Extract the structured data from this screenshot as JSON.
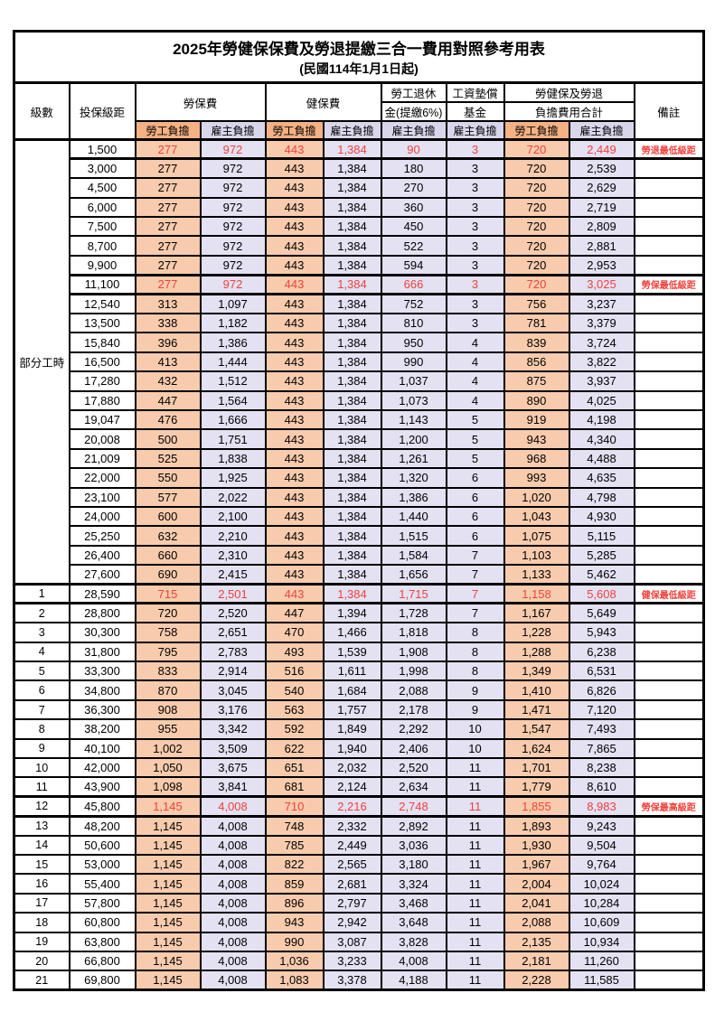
{
  "table": {
    "title": "2025年勞健保保費及勞退提繳三合一費用對照參考用表",
    "subtitle": "(民國114年1月1日起)",
    "headers": {
      "level": "級數",
      "salary_bracket": "投保級距",
      "labor_insurance": "勞保費",
      "health_insurance": "健保費",
      "pension_line1": "勞工退休",
      "pension_line2": "金(提繳6%)",
      "wage_fund_line1": "工資墊償",
      "wage_fund_line2": "基金",
      "total_line1": "勞健保及勞退",
      "total_line2": "負擔費用合計",
      "remark": "備註",
      "employee_share": "勞工負擔",
      "employer_share": "雇主負擔"
    },
    "part_time_label": "部分工時",
    "part_time_rowspan": 23,
    "colors": {
      "employee_header_bg": "#f4b183",
      "employee_cell_bg": "#f8cbad",
      "employer_header_bg": "#d9d6ec",
      "employer_cell_bg": "#e3e1f2",
      "highlight_text": "#f2413b",
      "remark_text": "#fa4b42",
      "border": "#000000"
    },
    "rows": [
      {
        "level": "",
        "salary": "1,500",
        "labor_emp": "277",
        "labor_er": "972",
        "health_emp": "443",
        "health_er": "1,384",
        "pension_er": "90",
        "fund_er": "3",
        "total_emp": "720",
        "total_er": "2,449",
        "remark": "勞退最低級距",
        "highlight": true
      },
      {
        "level": "",
        "salary": "3,000",
        "labor_emp": "277",
        "labor_er": "972",
        "health_emp": "443",
        "health_er": "1,384",
        "pension_er": "180",
        "fund_er": "3",
        "total_emp": "720",
        "total_er": "2,539",
        "remark": "",
        "highlight": false
      },
      {
        "level": "",
        "salary": "4,500",
        "labor_emp": "277",
        "labor_er": "972",
        "health_emp": "443",
        "health_er": "1,384",
        "pension_er": "270",
        "fund_er": "3",
        "total_emp": "720",
        "total_er": "2,629",
        "remark": "",
        "highlight": false
      },
      {
        "level": "",
        "salary": "6,000",
        "labor_emp": "277",
        "labor_er": "972",
        "health_emp": "443",
        "health_er": "1,384",
        "pension_er": "360",
        "fund_er": "3",
        "total_emp": "720",
        "total_er": "2,719",
        "remark": "",
        "highlight": false
      },
      {
        "level": "",
        "salary": "7,500",
        "labor_emp": "277",
        "labor_er": "972",
        "health_emp": "443",
        "health_er": "1,384",
        "pension_er": "450",
        "fund_er": "3",
        "total_emp": "720",
        "total_er": "2,809",
        "remark": "",
        "highlight": false
      },
      {
        "level": "",
        "salary": "8,700",
        "labor_emp": "277",
        "labor_er": "972",
        "health_emp": "443",
        "health_er": "1,384",
        "pension_er": "522",
        "fund_er": "3",
        "total_emp": "720",
        "total_er": "2,881",
        "remark": "",
        "highlight": false
      },
      {
        "level": "",
        "salary": "9,900",
        "labor_emp": "277",
        "labor_er": "972",
        "health_emp": "443",
        "health_er": "1,384",
        "pension_er": "594",
        "fund_er": "3",
        "total_emp": "720",
        "total_er": "2,953",
        "remark": "",
        "highlight": false
      },
      {
        "level": "",
        "salary": "11,100",
        "labor_emp": "277",
        "labor_er": "972",
        "health_emp": "443",
        "health_er": "1,384",
        "pension_er": "666",
        "fund_er": "3",
        "total_emp": "720",
        "total_er": "3,025",
        "remark": "勞保最低級距",
        "highlight": true
      },
      {
        "level": "",
        "salary": "12,540",
        "labor_emp": "313",
        "labor_er": "1,097",
        "health_emp": "443",
        "health_er": "1,384",
        "pension_er": "752",
        "fund_er": "3",
        "total_emp": "756",
        "total_er": "3,237",
        "remark": "",
        "highlight": false
      },
      {
        "level": "",
        "salary": "13,500",
        "labor_emp": "338",
        "labor_er": "1,182",
        "health_emp": "443",
        "health_er": "1,384",
        "pension_er": "810",
        "fund_er": "3",
        "total_emp": "781",
        "total_er": "3,379",
        "remark": "",
        "highlight": false
      },
      {
        "level": "",
        "salary": "15,840",
        "labor_emp": "396",
        "labor_er": "1,386",
        "health_emp": "443",
        "health_er": "1,384",
        "pension_er": "950",
        "fund_er": "4",
        "total_emp": "839",
        "total_er": "3,724",
        "remark": "",
        "highlight": false
      },
      {
        "level": "",
        "salary": "16,500",
        "labor_emp": "413",
        "labor_er": "1,444",
        "health_emp": "443",
        "health_er": "1,384",
        "pension_er": "990",
        "fund_er": "4",
        "total_emp": "856",
        "total_er": "3,822",
        "remark": "",
        "highlight": false
      },
      {
        "level": "",
        "salary": "17,280",
        "labor_emp": "432",
        "labor_er": "1,512",
        "health_emp": "443",
        "health_er": "1,384",
        "pension_er": "1,037",
        "fund_er": "4",
        "total_emp": "875",
        "total_er": "3,937",
        "remark": "",
        "highlight": false
      },
      {
        "level": "",
        "salary": "17,880",
        "labor_emp": "447",
        "labor_er": "1,564",
        "health_emp": "443",
        "health_er": "1,384",
        "pension_er": "1,073",
        "fund_er": "4",
        "total_emp": "890",
        "total_er": "4,025",
        "remark": "",
        "highlight": false
      },
      {
        "level": "",
        "salary": "19,047",
        "labor_emp": "476",
        "labor_er": "1,666",
        "health_emp": "443",
        "health_er": "1,384",
        "pension_er": "1,143",
        "fund_er": "5",
        "total_emp": "919",
        "total_er": "4,198",
        "remark": "",
        "highlight": false
      },
      {
        "level": "",
        "salary": "20,008",
        "labor_emp": "500",
        "labor_er": "1,751",
        "health_emp": "443",
        "health_er": "1,384",
        "pension_er": "1,200",
        "fund_er": "5",
        "total_emp": "943",
        "total_er": "4,340",
        "remark": "",
        "highlight": false
      },
      {
        "level": "",
        "salary": "21,009",
        "labor_emp": "525",
        "labor_er": "1,838",
        "health_emp": "443",
        "health_er": "1,384",
        "pension_er": "1,261",
        "fund_er": "5",
        "total_emp": "968",
        "total_er": "4,488",
        "remark": "",
        "highlight": false
      },
      {
        "level": "",
        "salary": "22,000",
        "labor_emp": "550",
        "labor_er": "1,925",
        "health_emp": "443",
        "health_er": "1,384",
        "pension_er": "1,320",
        "fund_er": "6",
        "total_emp": "993",
        "total_er": "4,635",
        "remark": "",
        "highlight": false
      },
      {
        "level": "",
        "salary": "23,100",
        "labor_emp": "577",
        "labor_er": "2,022",
        "health_emp": "443",
        "health_er": "1,384",
        "pension_er": "1,386",
        "fund_er": "6",
        "total_emp": "1,020",
        "total_er": "4,798",
        "remark": "",
        "highlight": false
      },
      {
        "level": "",
        "salary": "24,000",
        "labor_emp": "600",
        "labor_er": "2,100",
        "health_emp": "443",
        "health_er": "1,384",
        "pension_er": "1,440",
        "fund_er": "6",
        "total_emp": "1,043",
        "total_er": "4,930",
        "remark": "",
        "highlight": false
      },
      {
        "level": "",
        "salary": "25,250",
        "labor_emp": "632",
        "labor_er": "2,210",
        "health_emp": "443",
        "health_er": "1,384",
        "pension_er": "1,515",
        "fund_er": "6",
        "total_emp": "1,075",
        "total_er": "5,115",
        "remark": "",
        "highlight": false
      },
      {
        "level": "",
        "salary": "26,400",
        "labor_emp": "660",
        "labor_er": "2,310",
        "health_emp": "443",
        "health_er": "1,384",
        "pension_er": "1,584",
        "fund_er": "7",
        "total_emp": "1,103",
        "total_er": "5,285",
        "remark": "",
        "highlight": false
      },
      {
        "level": "",
        "salary": "27,600",
        "labor_emp": "690",
        "labor_er": "2,415",
        "health_emp": "443",
        "health_er": "1,384",
        "pension_er": "1,656",
        "fund_er": "7",
        "total_emp": "1,133",
        "total_er": "5,462",
        "remark": "",
        "highlight": false
      },
      {
        "level": "1",
        "salary": "28,590",
        "labor_emp": "715",
        "labor_er": "2,501",
        "health_emp": "443",
        "health_er": "1,384",
        "pension_er": "1,715",
        "fund_er": "7",
        "total_emp": "1,158",
        "total_er": "5,608",
        "remark": "健保最低級距",
        "highlight": true
      },
      {
        "level": "2",
        "salary": "28,800",
        "labor_emp": "720",
        "labor_er": "2,520",
        "health_emp": "447",
        "health_er": "1,394",
        "pension_er": "1,728",
        "fund_er": "7",
        "total_emp": "1,167",
        "total_er": "5,649",
        "remark": "",
        "highlight": false
      },
      {
        "level": "3",
        "salary": "30,300",
        "labor_emp": "758",
        "labor_er": "2,651",
        "health_emp": "470",
        "health_er": "1,466",
        "pension_er": "1,818",
        "fund_er": "8",
        "total_emp": "1,228",
        "total_er": "5,943",
        "remark": "",
        "highlight": false
      },
      {
        "level": "4",
        "salary": "31,800",
        "labor_emp": "795",
        "labor_er": "2,783",
        "health_emp": "493",
        "health_er": "1,539",
        "pension_er": "1,908",
        "fund_er": "8",
        "total_emp": "1,288",
        "total_er": "6,238",
        "remark": "",
        "highlight": false
      },
      {
        "level": "5",
        "salary": "33,300",
        "labor_emp": "833",
        "labor_er": "2,914",
        "health_emp": "516",
        "health_er": "1,611",
        "pension_er": "1,998",
        "fund_er": "8",
        "total_emp": "1,349",
        "total_er": "6,531",
        "remark": "",
        "highlight": false
      },
      {
        "level": "6",
        "salary": "34,800",
        "labor_emp": "870",
        "labor_er": "3,045",
        "health_emp": "540",
        "health_er": "1,684",
        "pension_er": "2,088",
        "fund_er": "9",
        "total_emp": "1,410",
        "total_er": "6,826",
        "remark": "",
        "highlight": false
      },
      {
        "level": "7",
        "salary": "36,300",
        "labor_emp": "908",
        "labor_er": "3,176",
        "health_emp": "563",
        "health_er": "1,757",
        "pension_er": "2,178",
        "fund_er": "9",
        "total_emp": "1,471",
        "total_er": "7,120",
        "remark": "",
        "highlight": false
      },
      {
        "level": "8",
        "salary": "38,200",
        "labor_emp": "955",
        "labor_er": "3,342",
        "health_emp": "592",
        "health_er": "1,849",
        "pension_er": "2,292",
        "fund_er": "10",
        "total_emp": "1,547",
        "total_er": "7,493",
        "remark": "",
        "highlight": false
      },
      {
        "level": "9",
        "salary": "40,100",
        "labor_emp": "1,002",
        "labor_er": "3,509",
        "health_emp": "622",
        "health_er": "1,940",
        "pension_er": "2,406",
        "fund_er": "10",
        "total_emp": "1,624",
        "total_er": "7,865",
        "remark": "",
        "highlight": false
      },
      {
        "level": "10",
        "salary": "42,000",
        "labor_emp": "1,050",
        "labor_er": "3,675",
        "health_emp": "651",
        "health_er": "2,032",
        "pension_er": "2,520",
        "fund_er": "11",
        "total_emp": "1,701",
        "total_er": "8,238",
        "remark": "",
        "highlight": false
      },
      {
        "level": "11",
        "salary": "43,900",
        "labor_emp": "1,098",
        "labor_er": "3,841",
        "health_emp": "681",
        "health_er": "2,124",
        "pension_er": "2,634",
        "fund_er": "11",
        "total_emp": "1,779",
        "total_er": "8,610",
        "remark": "",
        "highlight": false
      },
      {
        "level": "12",
        "salary": "45,800",
        "labor_emp": "1,145",
        "labor_er": "4,008",
        "health_emp": "710",
        "health_er": "2,216",
        "pension_er": "2,748",
        "fund_er": "11",
        "total_emp": "1,855",
        "total_er": "8,983",
        "remark": "勞保最高級距",
        "highlight": true
      },
      {
        "level": "13",
        "salary": "48,200",
        "labor_emp": "1,145",
        "labor_er": "4,008",
        "health_emp": "748",
        "health_er": "2,332",
        "pension_er": "2,892",
        "fund_er": "11",
        "total_emp": "1,893",
        "total_er": "9,243",
        "remark": "",
        "highlight": false
      },
      {
        "level": "14",
        "salary": "50,600",
        "labor_emp": "1,145",
        "labor_er": "4,008",
        "health_emp": "785",
        "health_er": "2,449",
        "pension_er": "3,036",
        "fund_er": "11",
        "total_emp": "1,930",
        "total_er": "9,504",
        "remark": "",
        "highlight": false
      },
      {
        "level": "15",
        "salary": "53,000",
        "labor_emp": "1,145",
        "labor_er": "4,008",
        "health_emp": "822",
        "health_er": "2,565",
        "pension_er": "3,180",
        "fund_er": "11",
        "total_emp": "1,967",
        "total_er": "9,764",
        "remark": "",
        "highlight": false
      },
      {
        "level": "16",
        "salary": "55,400",
        "labor_emp": "1,145",
        "labor_er": "4,008",
        "health_emp": "859",
        "health_er": "2,681",
        "pension_er": "3,324",
        "fund_er": "11",
        "total_emp": "2,004",
        "total_er": "10,024",
        "remark": "",
        "highlight": false
      },
      {
        "level": "17",
        "salary": "57,800",
        "labor_emp": "1,145",
        "labor_er": "4,008",
        "health_emp": "896",
        "health_er": "2,797",
        "pension_er": "3,468",
        "fund_er": "11",
        "total_emp": "2,041",
        "total_er": "10,284",
        "remark": "",
        "highlight": false
      },
      {
        "level": "18",
        "salary": "60,800",
        "labor_emp": "1,145",
        "labor_er": "4,008",
        "health_emp": "943",
        "health_er": "2,942",
        "pension_er": "3,648",
        "fund_er": "11",
        "total_emp": "2,088",
        "total_er": "10,609",
        "remark": "",
        "highlight": false
      },
      {
        "level": "19",
        "salary": "63,800",
        "labor_emp": "1,145",
        "labor_er": "4,008",
        "health_emp": "990",
        "health_er": "3,087",
        "pension_er": "3,828",
        "fund_er": "11",
        "total_emp": "2,135",
        "total_er": "10,934",
        "remark": "",
        "highlight": false
      },
      {
        "level": "20",
        "salary": "66,800",
        "labor_emp": "1,145",
        "labor_er": "4,008",
        "health_emp": "1,036",
        "health_er": "3,233",
        "pension_er": "4,008",
        "fund_er": "11",
        "total_emp": "2,181",
        "total_er": "11,260",
        "remark": "",
        "highlight": false
      },
      {
        "level": "21",
        "salary": "69,800",
        "labor_emp": "1,145",
        "labor_er": "4,008",
        "health_emp": "1,083",
        "health_er": "3,378",
        "pension_er": "4,188",
        "fund_er": "11",
        "total_emp": "2,228",
        "total_er": "11,585",
        "remark": "",
        "highlight": false
      }
    ]
  }
}
